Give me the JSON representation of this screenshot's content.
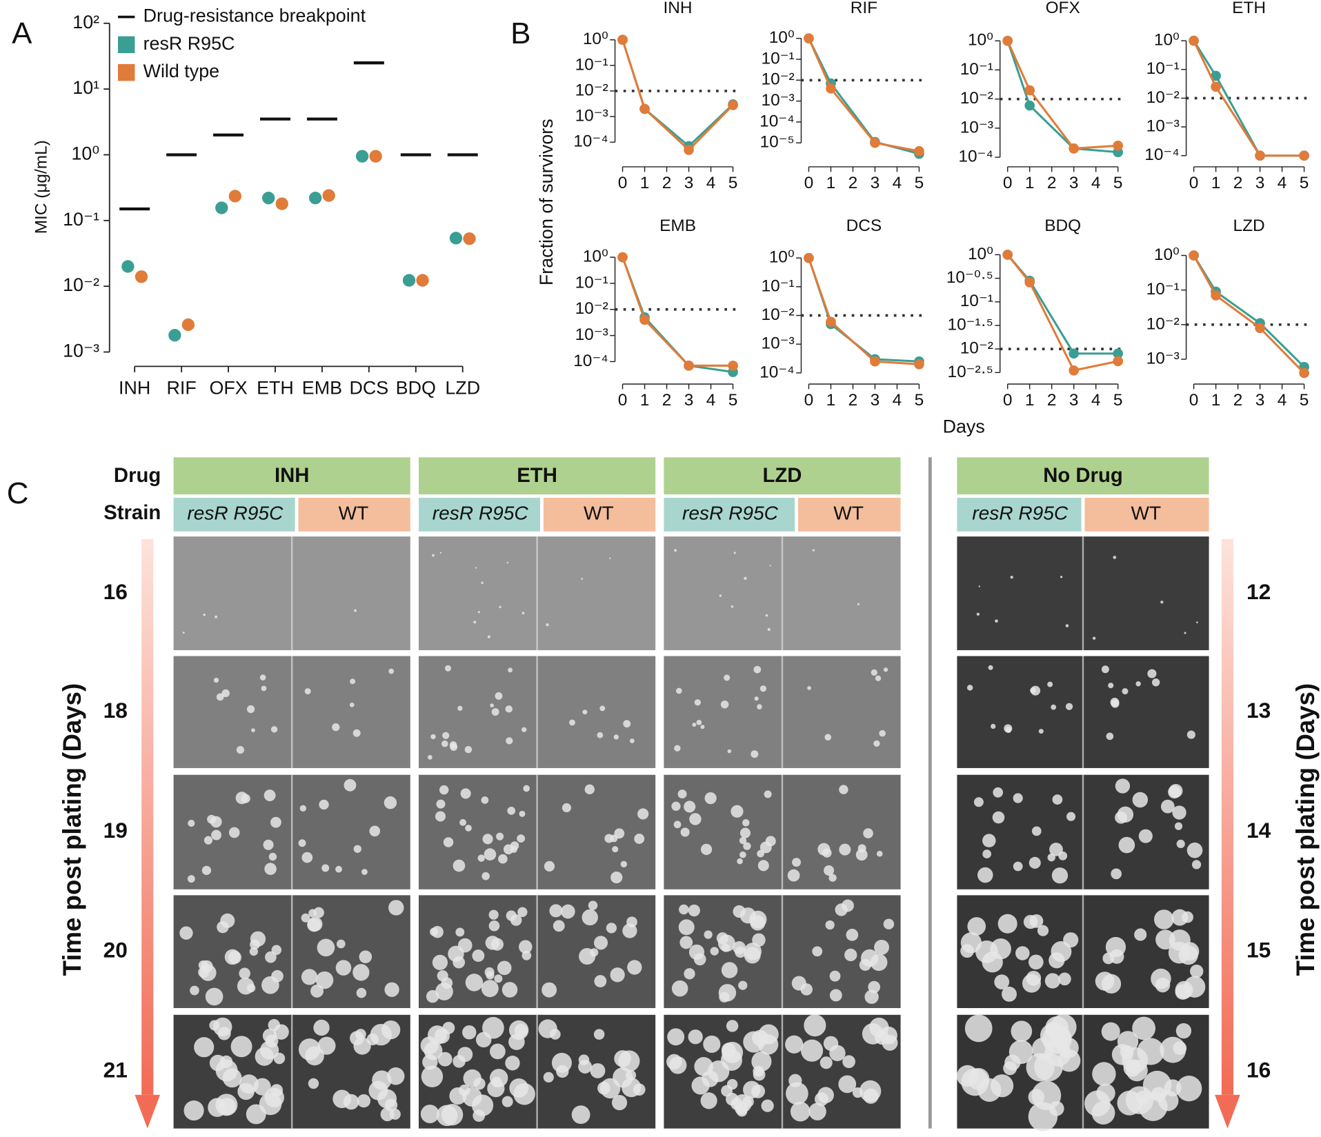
{
  "panel_labels": [
    "A",
    "B",
    "C"
  ],
  "chart_data": [
    {
      "type": "dot",
      "categories": [
        "INH",
        "RIF",
        "OFX",
        "ETH",
        "EMB",
        "DCS",
        "BDQ",
        "LZD"
      ],
      "ylabel": "MIC (μg/mL)",
      "log_y": true,
      "ylim": [
        0.0007,
        125
      ],
      "yticks": [
        {
          "value": 0.001,
          "label": "10⁻³"
        },
        {
          "value": 0.01,
          "label": "10⁻²"
        },
        {
          "value": 0.1,
          "label": "10⁻¹"
        },
        {
          "value": 1,
          "label": "10⁰"
        },
        {
          "value": 10,
          "label": "10¹"
        },
        {
          "value": 100,
          "label": "10²"
        }
      ],
      "series": [
        {
          "name": "Drug-resistance breakpoint",
          "color": "#111111",
          "marker": "dash",
          "values": [
            0.15,
            1,
            2,
            3.5,
            3.5,
            25,
            1,
            1
          ]
        },
        {
          "name": "resR R95C",
          "color": "#3a9e93",
          "marker": "dot",
          "values": [
            0.02,
            0.0018,
            0.156,
            0.22,
            0.22,
            0.95,
            0.0123,
            0.054
          ]
        },
        {
          "name": "Wild type",
          "color": "#e07b39",
          "marker": "dot",
          "values": [
            0.014,
            0.0026,
            0.235,
            0.18,
            0.24,
            0.95,
            0.0123,
            0.053
          ]
        }
      ]
    },
    {
      "type": "line",
      "title": "INH",
      "x": [
        0,
        1,
        3,
        5
      ],
      "xlim": [
        0,
        5
      ],
      "xticks": [
        0,
        1,
        2,
        3,
        4,
        5
      ],
      "log_y": true,
      "ylim": [
        2e-05,
        2
      ],
      "threshold": 0.01,
      "yticks": [
        {
          "value": 0.0001,
          "label": "10⁻⁴"
        },
        {
          "value": 0.001,
          "label": "10⁻³"
        },
        {
          "value": 0.01,
          "label": "10⁻²"
        },
        {
          "value": 0.1,
          "label": "10⁻¹"
        },
        {
          "value": 1,
          "label": "10⁰"
        }
      ],
      "series": [
        {
          "color": "#3a9e93",
          "values": [
            1,
            0.002,
            7e-05,
            0.003
          ]
        },
        {
          "color": "#e07b39",
          "values": [
            1,
            0.002,
            5e-05,
            0.0028
          ]
        }
      ]
    },
    {
      "type": "line",
      "title": "RIF",
      "x": [
        0,
        1,
        3,
        5
      ],
      "xlim": [
        0,
        5
      ],
      "xticks": [
        0,
        1,
        2,
        3,
        4,
        5
      ],
      "log_y": true,
      "ylim": [
        1.5e-06,
        2
      ],
      "threshold": 0.01,
      "yticks": [
        {
          "value": 1e-05,
          "label": "10⁻⁵"
        },
        {
          "value": 0.0001,
          "label": "10⁻⁴"
        },
        {
          "value": 0.001,
          "label": "10⁻³"
        },
        {
          "value": 0.01,
          "label": "10⁻²"
        },
        {
          "value": 0.1,
          "label": "10⁻¹"
        },
        {
          "value": 1,
          "label": "10⁰"
        }
      ],
      "series": [
        {
          "color": "#3a9e93",
          "values": [
            1,
            0.007,
            1.1e-05,
            3e-06
          ]
        },
        {
          "color": "#e07b39",
          "values": [
            1,
            0.004,
            1e-05,
            4e-06
          ]
        }
      ]
    },
    {
      "type": "line",
      "title": "OFX",
      "x": [
        0,
        1,
        3,
        5
      ],
      "xlim": [
        0,
        5
      ],
      "xticks": [
        0,
        1,
        2,
        3,
        4,
        5
      ],
      "log_y": true,
      "ylim": [
        8e-05,
        2
      ],
      "threshold": 0.01,
      "yticks": [
        {
          "value": 0.0001,
          "label": "10⁻⁴"
        },
        {
          "value": 0.001,
          "label": "10⁻³"
        },
        {
          "value": 0.01,
          "label": "10⁻²"
        },
        {
          "value": 0.1,
          "label": "10⁻¹"
        },
        {
          "value": 1,
          "label": "10⁰"
        }
      ],
      "series": [
        {
          "color": "#3a9e93",
          "values": [
            1,
            0.006,
            0.0002,
            0.00015
          ]
        },
        {
          "color": "#e07b39",
          "values": [
            1,
            0.02,
            0.0002,
            0.00025
          ]
        }
      ]
    },
    {
      "type": "line",
      "title": "ETH",
      "x": [
        0,
        1,
        3,
        5
      ],
      "xlim": [
        0,
        5
      ],
      "xticks": [
        0,
        1,
        2,
        3,
        4,
        5
      ],
      "log_y": true,
      "ylim": [
        7e-05,
        2
      ],
      "threshold": 0.01,
      "yticks": [
        {
          "value": 0.0001,
          "label": "10⁻⁴"
        },
        {
          "value": 0.001,
          "label": "10⁻³"
        },
        {
          "value": 0.01,
          "label": "10⁻²"
        },
        {
          "value": 0.1,
          "label": "10⁻¹"
        },
        {
          "value": 1,
          "label": "10⁰"
        }
      ],
      "series": [
        {
          "color": "#3a9e93",
          "values": [
            1,
            0.06,
            0.0001,
            0.0001
          ]
        },
        {
          "color": "#e07b39",
          "values": [
            1,
            0.025,
            0.0001,
            0.0001
          ]
        }
      ]
    },
    {
      "type": "line",
      "title": "EMB",
      "x": [
        0,
        1,
        3,
        5
      ],
      "xlim": [
        0,
        5
      ],
      "xticks": [
        0,
        1,
        2,
        3,
        4,
        5
      ],
      "log_y": true,
      "ylim": [
        2.5e-05,
        2
      ],
      "threshold": 0.01,
      "yticks": [
        {
          "value": 0.0001,
          "label": "10⁻⁴"
        },
        {
          "value": 0.001,
          "label": "10⁻³"
        },
        {
          "value": 0.01,
          "label": "10⁻²"
        },
        {
          "value": 0.1,
          "label": "10⁻¹"
        },
        {
          "value": 1,
          "label": "10⁰"
        }
      ],
      "series": [
        {
          "color": "#3a9e93",
          "values": [
            1,
            0.005,
            7e-05,
            4e-05
          ]
        },
        {
          "color": "#e07b39",
          "values": [
            1,
            0.004,
            7e-05,
            7e-05
          ]
        }
      ]
    },
    {
      "type": "line",
      "title": "DCS",
      "x": [
        0,
        1,
        3,
        5
      ],
      "xlim": [
        0,
        5
      ],
      "xticks": [
        0,
        1,
        2,
        3,
        4,
        5
      ],
      "log_y": true,
      "ylim": [
        7e-05,
        2
      ],
      "threshold": 0.01,
      "yticks": [
        {
          "value": 0.0001,
          "label": "10⁻⁴"
        },
        {
          "value": 0.001,
          "label": "10⁻³"
        },
        {
          "value": 0.01,
          "label": "10⁻²"
        },
        {
          "value": 0.1,
          "label": "10⁻¹"
        },
        {
          "value": 1,
          "label": "10⁰"
        }
      ],
      "series": [
        {
          "color": "#3a9e93",
          "values": [
            1,
            0.005,
            0.0003,
            0.00025
          ]
        },
        {
          "color": "#e07b39",
          "values": [
            1,
            0.006,
            0.00025,
            0.0002
          ]
        }
      ]
    },
    {
      "type": "line",
      "title": "BDQ",
      "x": [
        0,
        1,
        3,
        5
      ],
      "xlim": [
        0,
        5
      ],
      "xticks": [
        0,
        1,
        2,
        3,
        4,
        5
      ],
      "log_y": true,
      "ylim": [
        0.0025,
        1.3
      ],
      "threshold": 0.01,
      "yticks": [
        {
          "value": 0.00316,
          "label": "10⁻²·⁵"
        },
        {
          "value": 0.01,
          "label": "10⁻²"
        },
        {
          "value": 0.0316,
          "label": "10⁻¹·⁵"
        },
        {
          "value": 0.1,
          "label": "10⁻¹"
        },
        {
          "value": 0.316,
          "label": "10⁻⁰·⁵"
        },
        {
          "value": 1,
          "label": "10⁰"
        }
      ],
      "series": [
        {
          "color": "#3a9e93",
          "values": [
            1,
            0.28,
            0.008,
            0.008
          ]
        },
        {
          "color": "#e07b39",
          "values": [
            1,
            0.26,
            0.0035,
            0.0055
          ]
        }
      ]
    },
    {
      "type": "line",
      "title": "LZD",
      "x": [
        0,
        1,
        3,
        5
      ],
      "xlim": [
        0,
        5
      ],
      "xticks": [
        0,
        1,
        2,
        3,
        4,
        5
      ],
      "log_y": true,
      "ylim": [
        0.0003,
        1.5
      ],
      "threshold": 0.01,
      "yticks": [
        {
          "value": 0.001,
          "label": "10⁻³"
        },
        {
          "value": 0.01,
          "label": "10⁻²"
        },
        {
          "value": 0.1,
          "label": "10⁻¹"
        },
        {
          "value": 1,
          "label": "10⁰"
        }
      ],
      "series": [
        {
          "color": "#3a9e93",
          "values": [
            1,
            0.09,
            0.011,
            0.0006
          ]
        },
        {
          "color": "#e07b39",
          "values": [
            1,
            0.07,
            0.008,
            0.0004
          ]
        }
      ]
    }
  ],
  "panel_b": {
    "ylabel": "Fraction of survivors",
    "xlabel": "Days"
  },
  "plates": {
    "row_labels": [
      "Drug",
      "Strain"
    ],
    "drugs": [
      "INH",
      "ETH",
      "LZD",
      "No Drug"
    ],
    "strains": [
      "resR R95C",
      "WT"
    ],
    "left_days": [
      16,
      18,
      19,
      20,
      21
    ],
    "right_days": [
      12,
      13,
      14,
      15,
      16
    ],
    "time_label": "Time post plating (Days)"
  }
}
